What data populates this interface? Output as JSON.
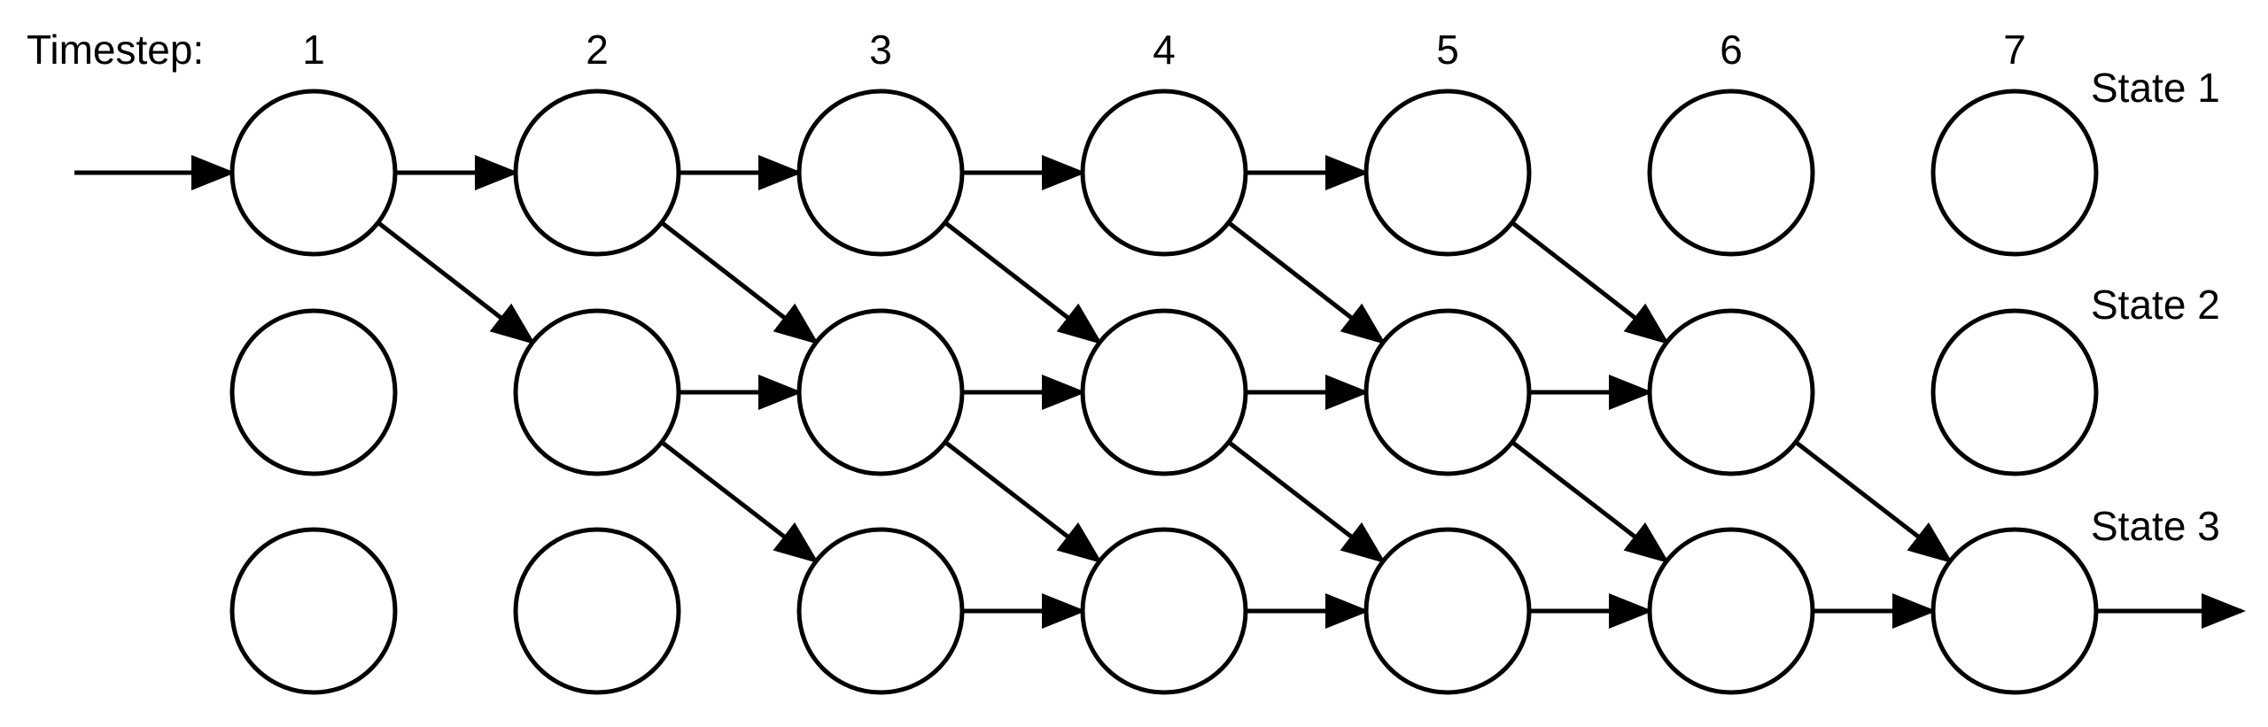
{
  "timestep_label": "Timestep:",
  "timesteps": [
    "1",
    "2",
    "3",
    "4",
    "5",
    "6",
    "7"
  ],
  "states": [
    "State 1",
    "State 2",
    "State 3"
  ],
  "transitions": [
    {
      "from": [
        1,
        1
      ],
      "to": [
        2,
        1
      ]
    },
    {
      "from": [
        1,
        1
      ],
      "to": [
        2,
        2
      ]
    },
    {
      "from": [
        2,
        1
      ],
      "to": [
        3,
        1
      ]
    },
    {
      "from": [
        2,
        1
      ],
      "to": [
        3,
        2
      ]
    },
    {
      "from": [
        3,
        1
      ],
      "to": [
        4,
        1
      ]
    },
    {
      "from": [
        3,
        1
      ],
      "to": [
        4,
        2
      ]
    },
    {
      "from": [
        4,
        1
      ],
      "to": [
        5,
        1
      ]
    },
    {
      "from": [
        4,
        1
      ],
      "to": [
        5,
        2
      ]
    },
    {
      "from": [
        5,
        1
      ],
      "to": [
        6,
        2
      ]
    },
    {
      "from": [
        2,
        2
      ],
      "to": [
        3,
        2
      ]
    },
    {
      "from": [
        2,
        2
      ],
      "to": [
        3,
        3
      ]
    },
    {
      "from": [
        3,
        2
      ],
      "to": [
        4,
        2
      ]
    },
    {
      "from": [
        3,
        2
      ],
      "to": [
        4,
        3
      ]
    },
    {
      "from": [
        4,
        2
      ],
      "to": [
        5,
        2
      ]
    },
    {
      "from": [
        4,
        2
      ],
      "to": [
        5,
        3
      ]
    },
    {
      "from": [
        5,
        2
      ],
      "to": [
        6,
        2
      ]
    },
    {
      "from": [
        5,
        2
      ],
      "to": [
        6,
        3
      ]
    },
    {
      "from": [
        6,
        2
      ],
      "to": [
        7,
        3
      ]
    },
    {
      "from": [
        3,
        3
      ],
      "to": [
        4,
        3
      ]
    },
    {
      "from": [
        4,
        3
      ],
      "to": [
        5,
        3
      ]
    },
    {
      "from": [
        5,
        3
      ],
      "to": [
        6,
        3
      ]
    },
    {
      "from": [
        6,
        3
      ],
      "to": [
        7,
        3
      ]
    }
  ],
  "entry": {
    "to": [
      1,
      1
    ]
  },
  "exit": {
    "from": [
      7,
      3
    ]
  }
}
